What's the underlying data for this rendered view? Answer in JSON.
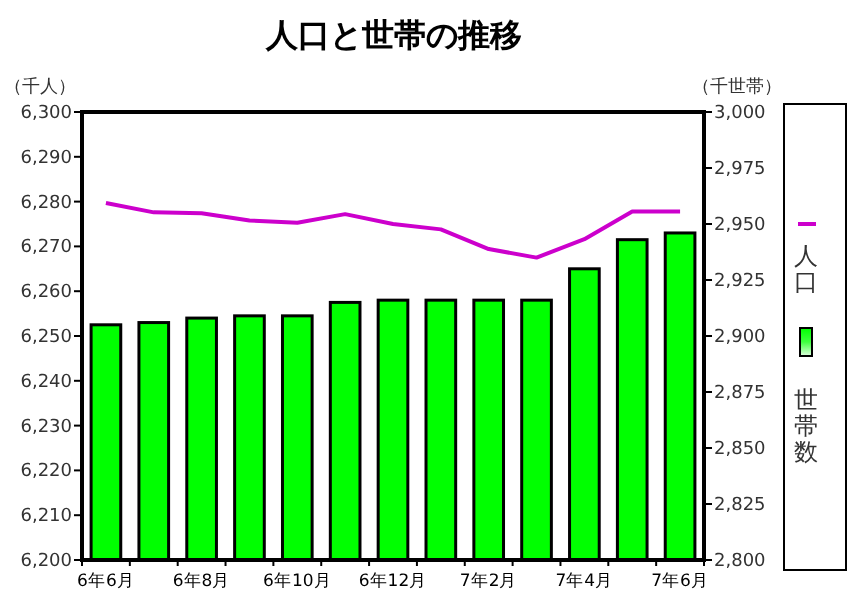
{
  "chart_data": {
    "type": "bar",
    "title": "人口と世帯の推移",
    "ylabel": "（千人）",
    "y2label": "（千世帯）",
    "categories": [
      "6年6月",
      null,
      "6年8月",
      null,
      "6年10月",
      null,
      "6年12月",
      null,
      "7年2月",
      null,
      "7年4月",
      null,
      "7年6月"
    ],
    "series": [
      {
        "name": "人口",
        "type": "line",
        "color": "#cc00cc",
        "axis": "y",
        "values": [
          6279.7,
          6277.6,
          6277.4,
          6275.8,
          6275.3,
          6277.2,
          6275,
          6273.8,
          6269.4,
          6267.5,
          6271.6,
          6277.8,
          6277.8
        ]
      },
      {
        "name": "世帯数",
        "color": "#00ff00",
        "axis": "y2",
        "values": [
          2905,
          2906,
          2908,
          2909,
          2909,
          2915,
          2916,
          2916,
          2916,
          2916,
          2930,
          2943,
          2946
        ]
      }
    ],
    "ylim": [
      6200,
      6300
    ],
    "yticks": [
      {
        "value": 6200,
        "label": "6,200"
      },
      {
        "value": 6210,
        "label": "6,210"
      },
      {
        "value": 6220,
        "label": "6,220"
      },
      {
        "value": 6230,
        "label": "6,230"
      },
      {
        "value": 6240,
        "label": "6,240"
      },
      {
        "value": 6250,
        "label": "6,250"
      },
      {
        "value": 6260,
        "label": "6,260"
      },
      {
        "value": 6270,
        "label": "6,270"
      },
      {
        "value": 6280,
        "label": "6,280"
      },
      {
        "value": 6290,
        "label": "6,290"
      },
      {
        "value": 6300,
        "label": "6,300"
      }
    ],
    "y2lim": [
      2800,
      3000
    ],
    "y2ticks": [
      {
        "value": 2800,
        "label": "2,800"
      },
      {
        "value": 2825,
        "label": "2,825"
      },
      {
        "value": 2850,
        "label": "2,850"
      },
      {
        "value": 2875,
        "label": "2,875"
      },
      {
        "value": 2900,
        "label": "2,900"
      },
      {
        "value": 2925,
        "label": "2,925"
      },
      {
        "value": 2950,
        "label": "2,950"
      },
      {
        "value": 2975,
        "label": "2,975"
      },
      {
        "value": 3000,
        "label": "3,000"
      }
    ],
    "legend": "right"
  }
}
